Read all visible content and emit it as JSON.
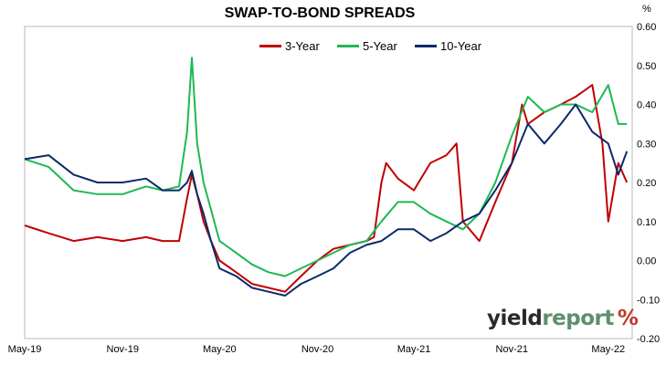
{
  "title": "SWAP-TO-BOND SPREADS",
  "unit": "%",
  "brand": {
    "part1": "yield",
    "part2": "report",
    "symbol": "%"
  },
  "chart_data": {
    "type": "line",
    "title": "SWAP-TO-BOND SPREADS",
    "ylabel": "%",
    "ylim": [
      -0.2,
      0.6
    ],
    "y_ticks": [
      "0.60",
      "0.50",
      "0.40",
      "0.30",
      "0.20",
      "0.10",
      "0.00",
      "-0.10",
      "-0.20"
    ],
    "x_ticks": [
      "May-19",
      "Nov-19",
      "May-20",
      "Nov-20",
      "May-21",
      "Nov-21",
      "May-22"
    ],
    "xlim": [
      "2019-05-01",
      "2022-06-15"
    ],
    "grid": false,
    "legend_position": "top-center",
    "series": [
      {
        "name": "3-Year",
        "color": "#c00000",
        "x": [
          "2019-05-01",
          "2019-06-15",
          "2019-08-01",
          "2019-09-15",
          "2019-11-01",
          "2019-12-15",
          "2020-01-15",
          "2020-02-15",
          "2020-03-01",
          "2020-03-10",
          "2020-03-20",
          "2020-04-01",
          "2020-04-15",
          "2020-05-01",
          "2020-06-01",
          "2020-07-01",
          "2020-08-01",
          "2020-09-01",
          "2020-10-01",
          "2020-11-01",
          "2020-12-01",
          "2021-01-01",
          "2021-02-01",
          "2021-02-15",
          "2021-03-01",
          "2021-03-10",
          "2021-04-01",
          "2021-05-01",
          "2021-06-01",
          "2021-07-01",
          "2021-07-20",
          "2021-08-01",
          "2021-09-01",
          "2021-10-01",
          "2021-11-01",
          "2021-11-20",
          "2021-12-01",
          "2022-01-01",
          "2022-02-01",
          "2022-03-01",
          "2022-04-01",
          "2022-04-20",
          "2022-05-01",
          "2022-05-20",
          "2022-06-05"
        ],
        "values": [
          0.09,
          0.07,
          0.05,
          0.06,
          0.05,
          0.06,
          0.05,
          0.05,
          0.16,
          0.22,
          0.17,
          0.1,
          0.05,
          0.0,
          -0.03,
          -0.06,
          -0.07,
          -0.08,
          -0.04,
          0.0,
          0.03,
          0.04,
          0.05,
          0.06,
          0.2,
          0.25,
          0.21,
          0.18,
          0.25,
          0.27,
          0.3,
          0.1,
          0.05,
          0.15,
          0.25,
          0.4,
          0.35,
          0.38,
          0.4,
          0.42,
          0.45,
          0.3,
          0.1,
          0.25,
          0.2
        ]
      },
      {
        "name": "5-Year",
        "color": "#1db954",
        "x": [
          "2019-05-01",
          "2019-06-15",
          "2019-08-01",
          "2019-09-15",
          "2019-11-01",
          "2019-12-15",
          "2020-01-15",
          "2020-02-15",
          "2020-03-01",
          "2020-03-10",
          "2020-03-20",
          "2020-04-01",
          "2020-04-15",
          "2020-05-01",
          "2020-06-01",
          "2020-07-01",
          "2020-08-01",
          "2020-09-01",
          "2020-10-01",
          "2020-11-01",
          "2020-12-01",
          "2021-01-01",
          "2021-02-01",
          "2021-03-01",
          "2021-04-01",
          "2021-05-01",
          "2021-06-01",
          "2021-07-01",
          "2021-08-01",
          "2021-09-01",
          "2021-10-01",
          "2021-11-01",
          "2021-12-01",
          "2022-01-01",
          "2022-02-01",
          "2022-03-01",
          "2022-04-01",
          "2022-05-01",
          "2022-05-20",
          "2022-06-05"
        ],
        "values": [
          0.26,
          0.24,
          0.18,
          0.17,
          0.17,
          0.19,
          0.18,
          0.19,
          0.33,
          0.52,
          0.3,
          0.2,
          0.13,
          0.05,
          0.02,
          -0.01,
          -0.03,
          -0.04,
          -0.02,
          0.0,
          0.02,
          0.04,
          0.05,
          0.1,
          0.15,
          0.15,
          0.12,
          0.1,
          0.08,
          0.12,
          0.2,
          0.32,
          0.42,
          0.38,
          0.4,
          0.4,
          0.38,
          0.45,
          0.35,
          0.35
        ]
      },
      {
        "name": "10-Year",
        "color": "#0b2a6b",
        "x": [
          "2019-05-01",
          "2019-06-15",
          "2019-08-01",
          "2019-09-15",
          "2019-11-01",
          "2019-12-15",
          "2020-01-15",
          "2020-02-15",
          "2020-03-01",
          "2020-03-10",
          "2020-03-20",
          "2020-04-01",
          "2020-04-15",
          "2020-05-01",
          "2020-06-01",
          "2020-07-01",
          "2020-08-01",
          "2020-09-01",
          "2020-10-01",
          "2020-11-01",
          "2020-12-01",
          "2021-01-01",
          "2021-02-01",
          "2021-03-01",
          "2021-04-01",
          "2021-05-01",
          "2021-06-01",
          "2021-07-01",
          "2021-08-01",
          "2021-09-01",
          "2021-10-01",
          "2021-11-01",
          "2021-12-01",
          "2022-01-01",
          "2022-02-01",
          "2022-03-01",
          "2022-04-01",
          "2022-05-01",
          "2022-05-20",
          "2022-06-05"
        ],
        "values": [
          0.26,
          0.27,
          0.22,
          0.2,
          0.2,
          0.21,
          0.18,
          0.18,
          0.2,
          0.23,
          0.17,
          0.12,
          0.05,
          -0.02,
          -0.04,
          -0.07,
          -0.08,
          -0.09,
          -0.06,
          -0.04,
          -0.02,
          0.02,
          0.04,
          0.05,
          0.08,
          0.08,
          0.05,
          0.07,
          0.1,
          0.12,
          0.18,
          0.25,
          0.35,
          0.3,
          0.35,
          0.4,
          0.33,
          0.3,
          0.22,
          0.28
        ]
      }
    ]
  }
}
